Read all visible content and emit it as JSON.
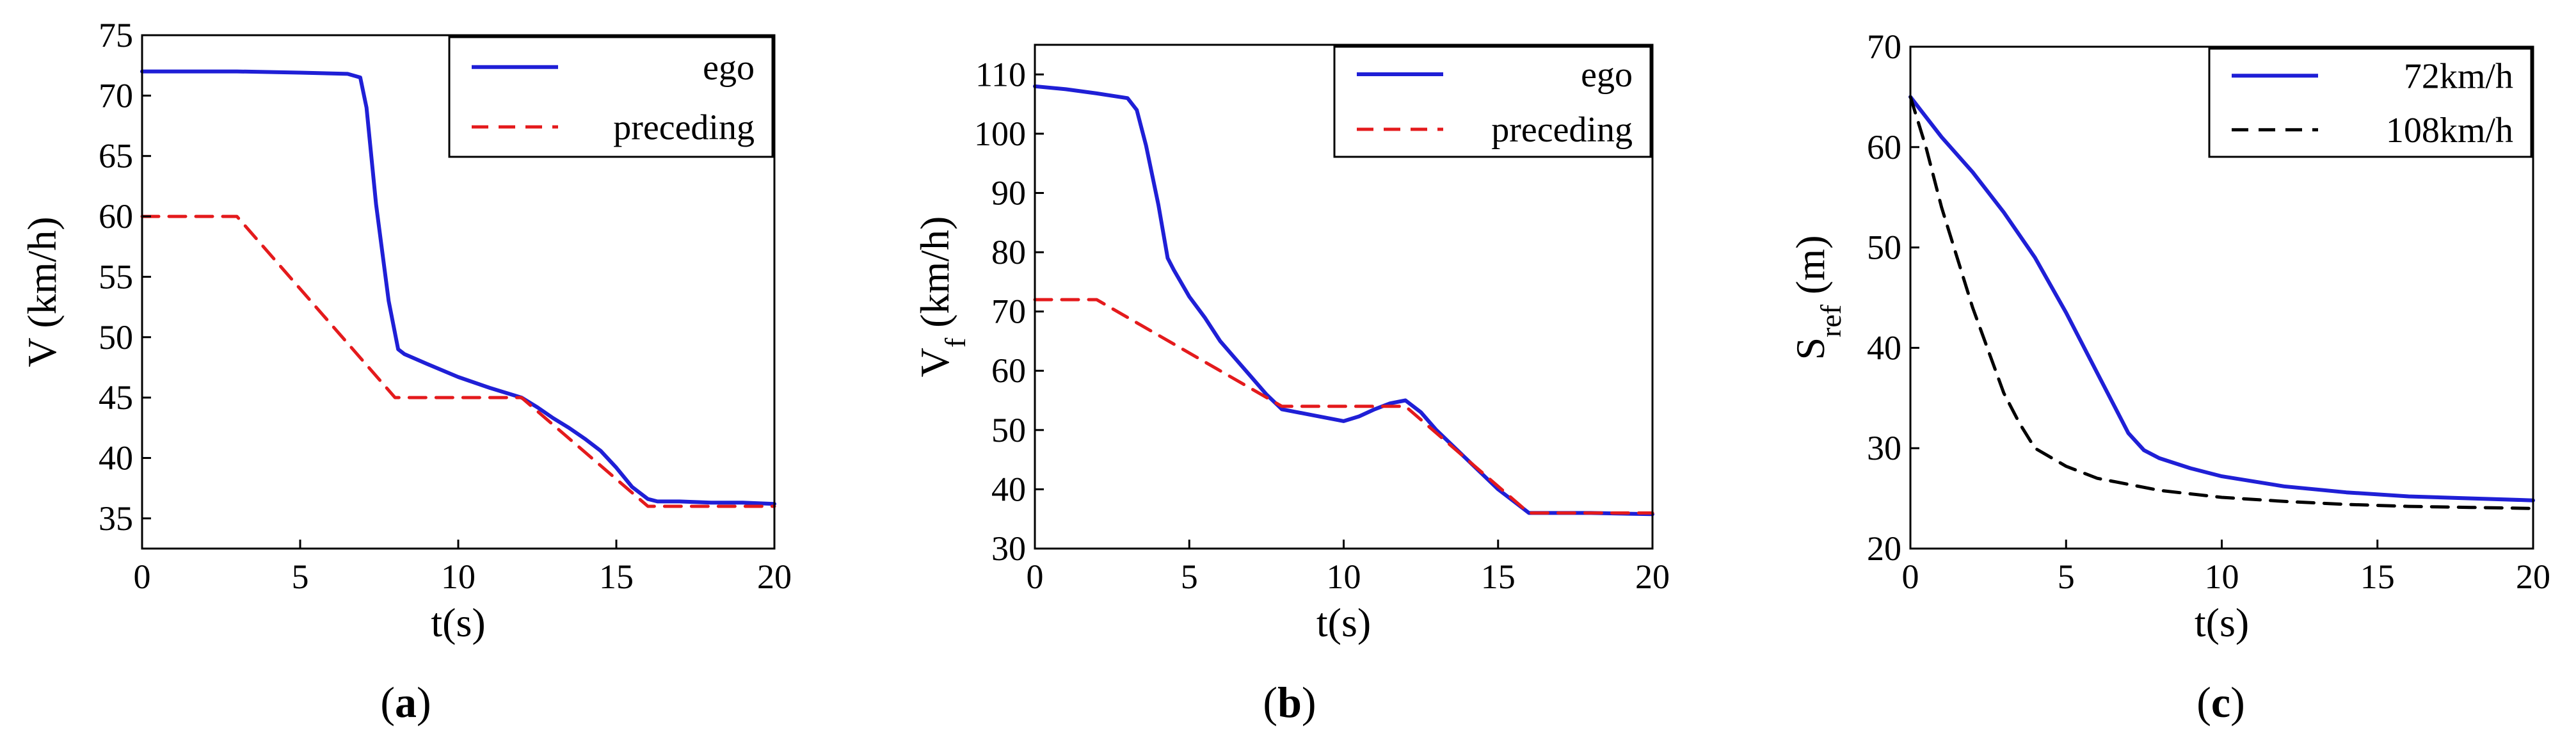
{
  "chart_data": [
    {
      "type": "line",
      "panel_label": "a",
      "xlabel": "t(s)",
      "ylabel": "V (km/h)",
      "xlim": [
        0,
        20
      ],
      "ylim": [
        32.5,
        75
      ],
      "xticks": [
        0,
        5,
        10,
        15,
        20
      ],
      "yticks": [
        35,
        40,
        45,
        50,
        55,
        60,
        65,
        70,
        75
      ],
      "legend": "top-right",
      "series": [
        {
          "name": "ego",
          "color": "#1f1fd6",
          "style": "solid",
          "x": [
            0,
            3,
            5,
            6.5,
            6.9,
            7.1,
            7.4,
            7.8,
            8.1,
            8.3,
            9,
            10,
            11,
            12,
            12.5,
            13,
            13.5,
            14,
            14.5,
            15,
            15.5,
            16,
            16.3,
            17,
            18,
            19,
            20
          ],
          "y": [
            72,
            72,
            71.9,
            71.8,
            71.5,
            69,
            61,
            53,
            49,
            48.6,
            47.8,
            46.7,
            45.8,
            45,
            44.2,
            43.3,
            42.5,
            41.6,
            40.6,
            39.2,
            37.6,
            36.6,
            36.4,
            36.4,
            36.3,
            36.3,
            36.2
          ]
        },
        {
          "name": "preceding",
          "color": "#e41a1c",
          "style": "dashed",
          "x": [
            0,
            3,
            8,
            12,
            16,
            20
          ],
          "y": [
            60,
            60,
            45,
            45,
            36,
            36
          ]
        }
      ]
    },
    {
      "type": "line",
      "panel_label": "b",
      "xlabel": "t(s)",
      "ylabel_main": "V",
      "ylabel_sub": "f",
      "ylabel_suffix": " (km/h)",
      "xlim": [
        0,
        20
      ],
      "ylim": [
        30,
        115
      ],
      "xticks": [
        0,
        5,
        10,
        15,
        20
      ],
      "yticks": [
        30,
        40,
        50,
        60,
        70,
        80,
        90,
        100,
        110
      ],
      "legend": "top-right",
      "series": [
        {
          "name": "ego",
          "color": "#1f1fd6",
          "style": "solid",
          "x": [
            0,
            1,
            2,
            3,
            3.3,
            3.6,
            4,
            4.3,
            4.5,
            5,
            5.5,
            6,
            6.5,
            7,
            7.5,
            8,
            9,
            10,
            10.5,
            11,
            11.5,
            12,
            12.5,
            13,
            14,
            15,
            16,
            17,
            18,
            20
          ],
          "y": [
            108,
            107.5,
            106.8,
            106,
            104,
            98,
            88,
            79,
            77,
            72.5,
            69,
            65,
            62,
            59,
            56,
            53.5,
            52.5,
            51.5,
            52.3,
            53.5,
            54.5,
            55,
            53,
            50,
            45,
            40,
            36,
            36,
            36,
            35.8
          ]
        },
        {
          "name": "preceding",
          "color": "#e41a1c",
          "style": "dashed",
          "x": [
            0,
            2,
            8,
            12,
            16,
            20
          ],
          "y": [
            72,
            72,
            54,
            54,
            36,
            36
          ]
        }
      ]
    },
    {
      "type": "line",
      "panel_label": "c",
      "xlabel": "t(s)",
      "ylabel_main": "S",
      "ylabel_sub": "ref",
      "ylabel_suffix": " (m)",
      "xlim": [
        0,
        20
      ],
      "ylim": [
        20,
        70
      ],
      "xticks": [
        0,
        5,
        10,
        15,
        20
      ],
      "yticks": [
        20,
        30,
        40,
        50,
        60,
        70
      ],
      "legend": "top-right",
      "series": [
        {
          "name": "72km/h",
          "color": "#1f1fd6",
          "style": "solid",
          "x": [
            0,
            1,
            2,
            3,
            4,
            5,
            6,
            7,
            7.5,
            8,
            9,
            10,
            12,
            14,
            16,
            18,
            20
          ],
          "y": [
            65,
            61,
            57.5,
            53.5,
            49,
            43.5,
            37.5,
            31.5,
            29.8,
            29,
            28,
            27.2,
            26.2,
            25.6,
            25.2,
            25,
            24.8
          ]
        },
        {
          "name": "108km/h",
          "color": "#000000",
          "style": "dashed",
          "x": [
            0,
            0.5,
            1,
            2,
            3,
            3.5,
            4,
            5,
            6,
            8,
            10,
            12,
            14,
            16,
            18,
            20
          ],
          "y": [
            65,
            60,
            54,
            44,
            35.5,
            32.5,
            30,
            28.2,
            27,
            25.8,
            25.1,
            24.7,
            24.4,
            24.2,
            24.1,
            24
          ]
        }
      ]
    }
  ]
}
